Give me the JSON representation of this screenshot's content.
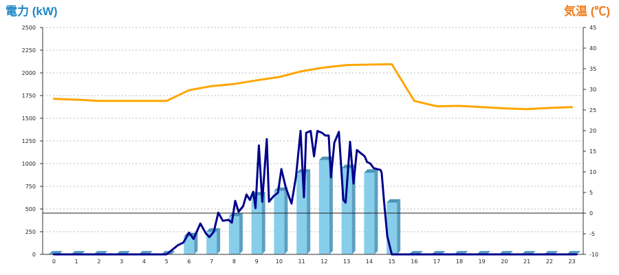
{
  "chart_data": {
    "type": "bar+line",
    "left_axis": {
      "label": "電力 (kW)",
      "ylim": [
        0,
        2500
      ],
      "ticks": [
        0,
        250,
        500,
        750,
        1000,
        1250,
        1500,
        1750,
        2000,
        2250,
        2500
      ]
    },
    "right_axis": {
      "label": "気温 (℃)",
      "ylim": [
        -10,
        45
      ],
      "ticks": [
        -10,
        -5,
        0,
        5,
        10,
        15,
        20,
        25,
        30,
        35,
        40,
        45
      ]
    },
    "x": {
      "categories": [
        "0",
        "1",
        "2",
        "3",
        "4",
        "5",
        "6",
        "7",
        "8",
        "9",
        "10",
        "11",
        "12",
        "13",
        "14",
        "15",
        "16",
        "17",
        "18",
        "19",
        "20",
        "21",
        "22",
        "23"
      ]
    },
    "grid": true,
    "series": [
      {
        "type": "bar",
        "axis": "left",
        "color": "#87ceeb",
        "values": [
          0,
          0,
          0,
          0,
          0,
          0,
          200,
          250,
          420,
          650,
          700,
          900,
          1040,
          950,
          900,
          570,
          0,
          0,
          0,
          0,
          0,
          0,
          0,
          0
        ]
      },
      {
        "type": "line",
        "axis": "left",
        "color": "#00008b",
        "points": [
          [
            0,
            0
          ],
          [
            5,
            0
          ],
          [
            5.25,
            50
          ],
          [
            5.5,
            100
          ],
          [
            5.75,
            130
          ],
          [
            6,
            240
          ],
          [
            6.2,
            170
          ],
          [
            6.5,
            340
          ],
          [
            6.75,
            230
          ],
          [
            6.9,
            190
          ],
          [
            7.1,
            250
          ],
          [
            7.3,
            460
          ],
          [
            7.5,
            370
          ],
          [
            7.75,
            380
          ],
          [
            7.9,
            350
          ],
          [
            8.05,
            590
          ],
          [
            8.2,
            470
          ],
          [
            8.4,
            530
          ],
          [
            8.55,
            660
          ],
          [
            8.7,
            600
          ],
          [
            8.85,
            690
          ],
          [
            8.95,
            510
          ],
          [
            9.1,
            1200
          ],
          [
            9.25,
            580
          ],
          [
            9.45,
            1270
          ],
          [
            9.55,
            580
          ],
          [
            9.75,
            640
          ],
          [
            9.95,
            680
          ],
          [
            10.1,
            940
          ],
          [
            10.3,
            730
          ],
          [
            10.55,
            560
          ],
          [
            10.75,
            860
          ],
          [
            10.95,
            1360
          ],
          [
            11.1,
            630
          ],
          [
            11.2,
            1340
          ],
          [
            11.4,
            1360
          ],
          [
            11.55,
            1080
          ],
          [
            11.7,
            1360
          ],
          [
            11.9,
            1340
          ],
          [
            12.05,
            1310
          ],
          [
            12.2,
            1310
          ],
          [
            12.3,
            850
          ],
          [
            12.45,
            1230
          ],
          [
            12.65,
            1350
          ],
          [
            12.85,
            600
          ],
          [
            12.95,
            570
          ],
          [
            13.15,
            1240
          ],
          [
            13.3,
            780
          ],
          [
            13.45,
            1150
          ],
          [
            13.6,
            1120
          ],
          [
            13.8,
            1080
          ],
          [
            13.9,
            1020
          ],
          [
            14.05,
            1000
          ],
          [
            14.2,
            950
          ],
          [
            14.35,
            940
          ],
          [
            14.5,
            930
          ],
          [
            14.55,
            900
          ],
          [
            14.65,
            600
          ],
          [
            14.8,
            200
          ],
          [
            15,
            0
          ],
          [
            23.2,
            0
          ]
        ]
      },
      {
        "type": "line",
        "axis": "right",
        "color": "#ffa500",
        "values": [
          27.7,
          27.5,
          27.2,
          27.2,
          27.2,
          27.2,
          29.8,
          30.8,
          31.3,
          32.2,
          33,
          34.4,
          35.3,
          35.9,
          36,
          36.1,
          27.2,
          25.9,
          26,
          25.7,
          25.4,
          25.2,
          25.5,
          25.7
        ]
      }
    ]
  }
}
